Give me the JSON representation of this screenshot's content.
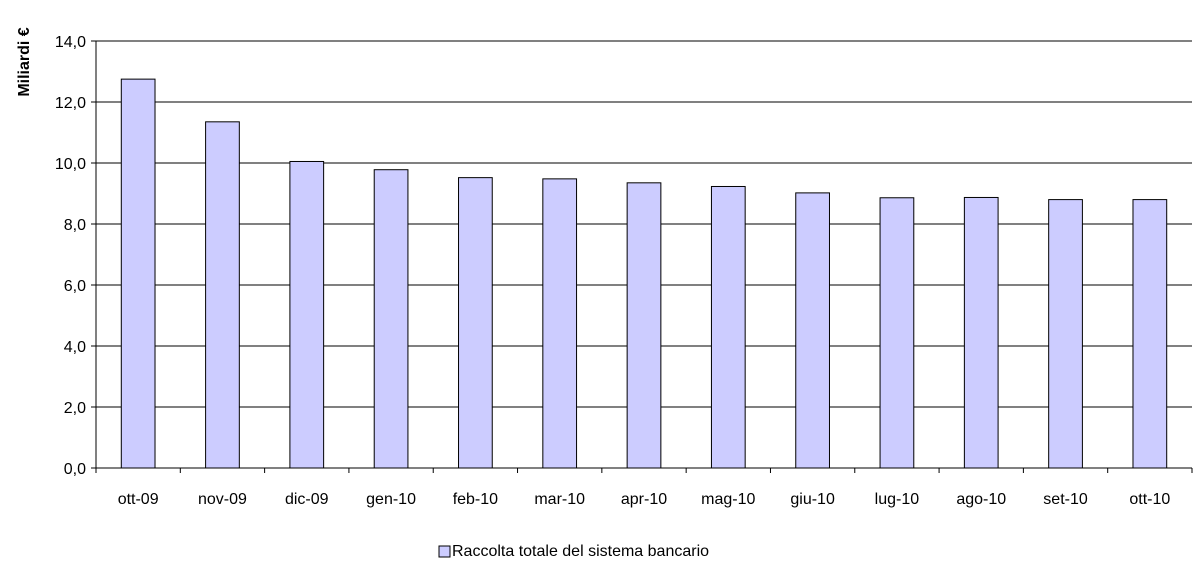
{
  "chart_data": {
    "type": "bar",
    "ylabel": "Miliardi €",
    "xlabel": "",
    "ylim": [
      0,
      14
    ],
    "ystep": 2,
    "ytick_labels": [
      "0,0",
      "2,0",
      "4,0",
      "6,0",
      "8,0",
      "10,0",
      "12,0",
      "14,0"
    ],
    "grid": true,
    "legend_position": "bottom-center",
    "categories": [
      "ott-09",
      "nov-09",
      "dic-09",
      "gen-10",
      "feb-10",
      "mar-10",
      "apr-10",
      "mag-10",
      "giu-10",
      "lug-10",
      "ago-10",
      "set-10",
      "ott-10"
    ],
    "series": [
      {
        "name": "Raccolta totale del sistema bancario",
        "color": "#ccccff",
        "values": [
          12.75,
          11.35,
          10.05,
          9.78,
          9.52,
          9.48,
          9.35,
          9.23,
          9.02,
          8.86,
          8.87,
          8.8,
          8.8
        ]
      }
    ]
  }
}
